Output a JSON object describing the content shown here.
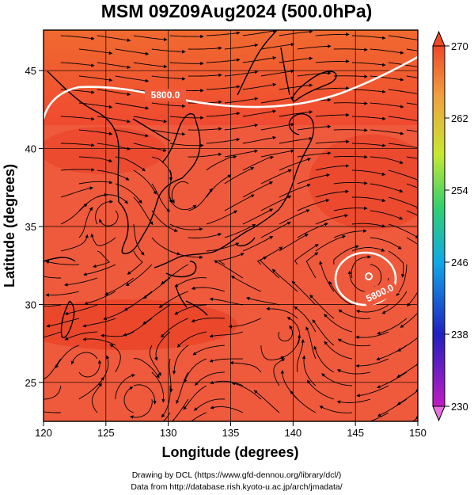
{
  "title": "MSM 09Z09Aug2024 (500.0hPa)",
  "x_axis": {
    "label": "Longitude (degrees)",
    "ticks": [
      "120",
      "125",
      "130",
      "135",
      "140",
      "145",
      "150"
    ]
  },
  "y_axis": {
    "label": "Latitude  (degrees)",
    "ticks": [
      "25",
      "30",
      "35",
      "40",
      "45"
    ]
  },
  "colorbar": {
    "ticks": [
      "270",
      "262",
      "254",
      "246",
      "238",
      "230"
    ],
    "colors": [
      "#c21cc4",
      "#2020c0",
      "#10a8e8",
      "#30d070",
      "#c8e830",
      "#f0a040",
      "#f04828"
    ]
  },
  "contours": [
    {
      "label": "5800.0"
    },
    {
      "label": "5800.0"
    }
  ],
  "credits": {
    "line1": "Drawing by DCL (https://www.gfd-dennou.org/library/dcl/)",
    "line2": "Data from http://database.rish.kyoto-u.ac.jp/arch/jmadata/"
  },
  "chart_data": {
    "type": "heatmap",
    "title": "MSM 09Z09Aug2024 (500.0hPa)",
    "xlabel": "Longitude (degrees)",
    "ylabel": "Latitude  (degrees)",
    "xlim": [
      120,
      150
    ],
    "ylim": [
      22.5,
      47.6
    ],
    "colorbar_range": [
      230,
      270
    ],
    "contour_level": 5800.0,
    "features": [
      "temperature shading",
      "streamlines",
      "coastlines",
      "5800.0 geopotential height contour",
      "closed low near 146E 32.5N"
    ]
  }
}
